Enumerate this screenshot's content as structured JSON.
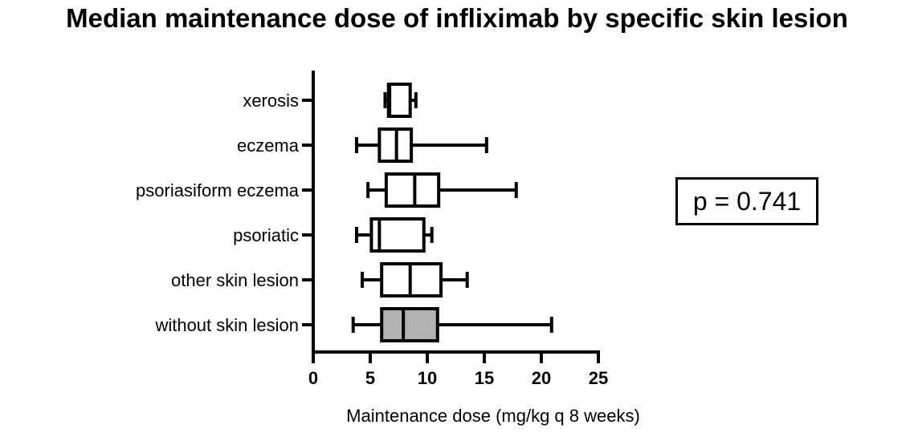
{
  "chart_data": {
    "type": "boxplot",
    "orientation": "horizontal",
    "title": "Median maintenance dose of infliximab by specific skin lesion",
    "xlabel": "Maintenance dose (mg/kg q 8 weeks)",
    "ylabel": "",
    "xlim": [
      0,
      25
    ],
    "xticks": [
      "0",
      "5",
      "10",
      "15",
      "20",
      "25"
    ],
    "grid": false,
    "categories": [
      "xerosis",
      "eczema",
      "psoriasiform eczema",
      "psoriatic",
      "other skin lesion",
      "without skin lesion"
    ],
    "boxes": [
      {
        "label": "xerosis",
        "min": 6.3,
        "q1": 6.6,
        "median": 6.7,
        "q3": 8.5,
        "max": 9.0,
        "fill": "#ffffff"
      },
      {
        "label": "eczema",
        "min": 3.8,
        "q1": 5.8,
        "median": 7.3,
        "q3": 8.6,
        "max": 15.2,
        "fill": "#ffffff"
      },
      {
        "label": "psoriasiform eczema",
        "min": 4.8,
        "q1": 6.4,
        "median": 8.9,
        "q3": 11.0,
        "max": 17.8,
        "fill": "#ffffff"
      },
      {
        "label": "psoriatic",
        "min": 3.8,
        "q1": 5.1,
        "median": 5.8,
        "q3": 9.7,
        "max": 10.4,
        "fill": "#ffffff"
      },
      {
        "label": "other skin lesion",
        "min": 4.3,
        "q1": 6.0,
        "median": 8.5,
        "q3": 11.2,
        "max": 13.5,
        "fill": "#ffffff"
      },
      {
        "label": "without skin lesion",
        "min": 3.5,
        "q1": 6.0,
        "median": 7.9,
        "q3": 10.9,
        "max": 20.9,
        "fill": "#b3b3b3"
      }
    ],
    "annotations": [
      {
        "text": "p = 0.741"
      }
    ]
  }
}
